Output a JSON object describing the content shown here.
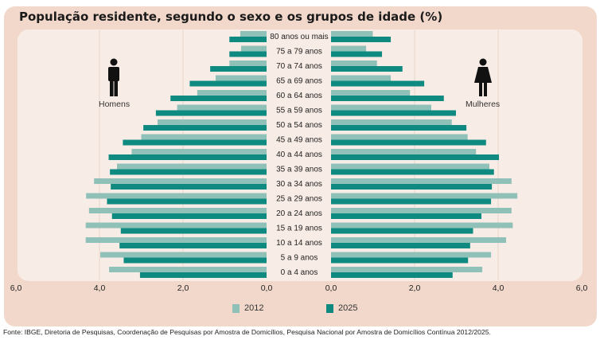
{
  "chart_data": {
    "type": "bar",
    "orientation": "horizontal-pyramid",
    "title": "População residente, segundo o sexo e os grupos de idade (%)",
    "categories": [
      "80 anos ou mais",
      "75 a 79 anos",
      "70 a 74 anos",
      "65 a 69 anos",
      "60 a 64 anos",
      "55 a 59 anos",
      "50 a 54 anos",
      "45 a 49 anos",
      "40 a 44 anos",
      "35 a 39 anos",
      "30 a 34 anos",
      "25 a 29 anos",
      "20 a 24 anos",
      "15 a 19 anos",
      "10 a 14 anos",
      "5 a 9 anos",
      "0 a 4 anos"
    ],
    "sides": [
      {
        "name": "Homens",
        "series": [
          {
            "name": "2012",
            "values": [
              0.63,
              0.61,
              0.89,
              1.22,
              1.66,
              2.14,
              2.61,
              3.0,
              3.23,
              3.58,
              4.13,
              4.32,
              4.25,
              4.33,
              4.33,
              3.98,
              3.77
            ]
          },
          {
            "name": "2025",
            "values": [
              0.89,
              0.89,
              1.35,
              1.84,
              2.3,
              2.65,
              2.95,
              3.44,
              3.78,
              3.75,
              3.73,
              3.82,
              3.7,
              3.49,
              3.52,
              3.42,
              3.03
            ]
          }
        ]
      },
      {
        "name": "Mulheres",
        "series": [
          {
            "name": "2012",
            "values": [
              1.0,
              0.84,
              1.1,
              1.43,
              1.89,
              2.4,
              2.89,
              3.27,
              3.47,
              3.79,
              4.32,
              4.46,
              4.32,
              4.35,
              4.19,
              3.83,
              3.62
            ]
          },
          {
            "name": "2025",
            "values": [
              1.43,
              1.22,
              1.71,
              2.23,
              2.7,
              2.99,
              3.24,
              3.71,
              4.02,
              3.9,
              3.85,
              3.83,
              3.6,
              3.4,
              3.33,
              3.28,
              2.91
            ]
          }
        ]
      }
    ],
    "xlim": [
      0,
      6
    ],
    "x_ticks_left": [
      "6,0",
      "4,0",
      "2,0",
      "0,0"
    ],
    "x_ticks_right": [
      "0,0",
      "2,0",
      "4,0",
      "6,0"
    ],
    "grid": true,
    "legend": {
      "position": "bottom",
      "entries": [
        "2012",
        "2025"
      ]
    },
    "colors": {
      "2012": "#8fc1b8",
      "2025": "#0e8a80"
    }
  },
  "labels": {
    "men": "Homens",
    "women": "Mulheres"
  },
  "icons": {
    "men": "man-icon",
    "women": "woman-icon"
  },
  "source": "Fonte: IBGE, Diretoria de Pesquisas, Coordenação de Pesquisas por Amostra de Domicílios, Pesquisa Nacional por Amostra de Domicílios Contínua 2012/2025."
}
